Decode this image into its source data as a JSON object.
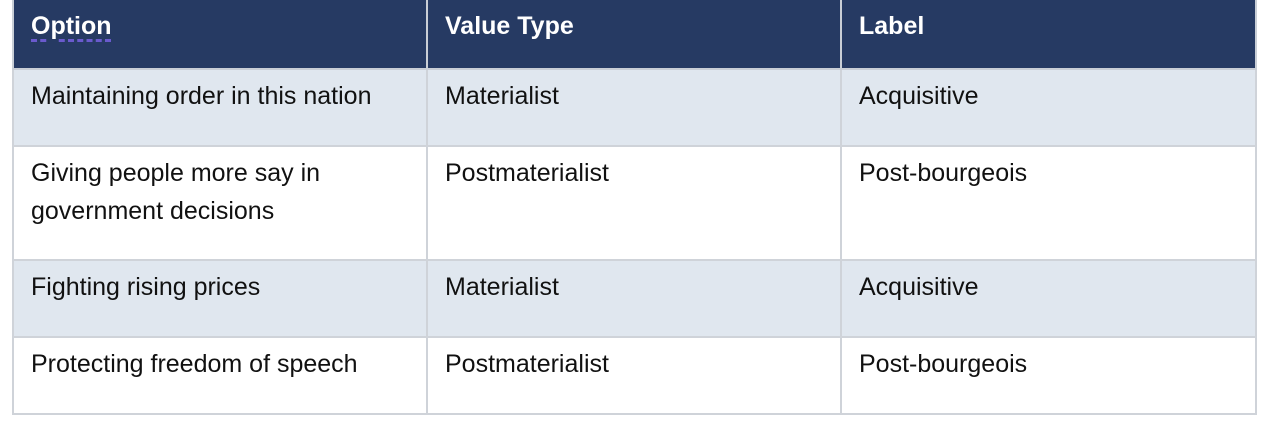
{
  "table": {
    "headers": [
      "Option",
      "Value Type",
      "Label"
    ],
    "rows": [
      [
        "Maintaining order in this nation",
        "Materialist",
        "Acquisitive"
      ],
      [
        "Giving people more say in government decisions",
        "Postmaterialist",
        "Post-bourgeois"
      ],
      [
        "Fighting rising prices",
        "Materialist",
        "Acquisitive"
      ],
      [
        "Protecting freedom of speech",
        "Postmaterialist",
        "Post-bourgeois"
      ]
    ]
  },
  "colors": {
    "header_background": "#263a63",
    "header_text": "#ffffff",
    "shaded_row": "#e0e7ef",
    "border": "#cfd3d9",
    "spellcheck_underline": "#6a5acd"
  }
}
